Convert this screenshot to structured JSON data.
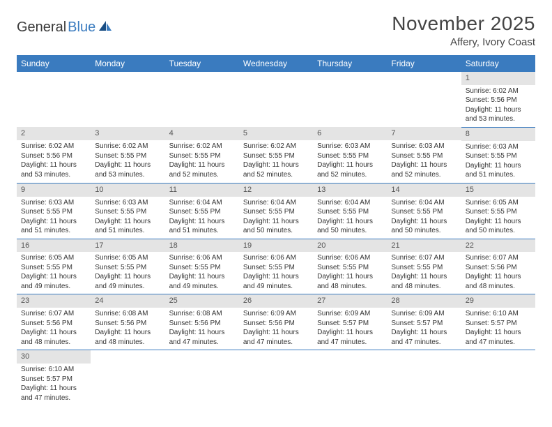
{
  "logo": {
    "part1": "General",
    "part2": "Blue"
  },
  "title": "November 2025",
  "location": "Affery, Ivory Coast",
  "colors": {
    "header_bg": "#3a7bbf",
    "header_text": "#ffffff",
    "day_strip_bg": "#e4e4e4",
    "row_border": "#3a7bbf",
    "text": "#333333",
    "logo_blue": "#3a7bbf",
    "logo_dark": "#3a3a3a"
  },
  "weekdays": [
    "Sunday",
    "Monday",
    "Tuesday",
    "Wednesday",
    "Thursday",
    "Friday",
    "Saturday"
  ],
  "weeks": [
    [
      null,
      null,
      null,
      null,
      null,
      null,
      {
        "n": "1",
        "sr": "Sunrise: 6:02 AM",
        "ss": "Sunset: 5:56 PM",
        "dl": "Daylight: 11 hours and 53 minutes."
      }
    ],
    [
      {
        "n": "2",
        "sr": "Sunrise: 6:02 AM",
        "ss": "Sunset: 5:56 PM",
        "dl": "Daylight: 11 hours and 53 minutes."
      },
      {
        "n": "3",
        "sr": "Sunrise: 6:02 AM",
        "ss": "Sunset: 5:55 PM",
        "dl": "Daylight: 11 hours and 53 minutes."
      },
      {
        "n": "4",
        "sr": "Sunrise: 6:02 AM",
        "ss": "Sunset: 5:55 PM",
        "dl": "Daylight: 11 hours and 52 minutes."
      },
      {
        "n": "5",
        "sr": "Sunrise: 6:02 AM",
        "ss": "Sunset: 5:55 PM",
        "dl": "Daylight: 11 hours and 52 minutes."
      },
      {
        "n": "6",
        "sr": "Sunrise: 6:03 AM",
        "ss": "Sunset: 5:55 PM",
        "dl": "Daylight: 11 hours and 52 minutes."
      },
      {
        "n": "7",
        "sr": "Sunrise: 6:03 AM",
        "ss": "Sunset: 5:55 PM",
        "dl": "Daylight: 11 hours and 52 minutes."
      },
      {
        "n": "8",
        "sr": "Sunrise: 6:03 AM",
        "ss": "Sunset: 5:55 PM",
        "dl": "Daylight: 11 hours and 51 minutes."
      }
    ],
    [
      {
        "n": "9",
        "sr": "Sunrise: 6:03 AM",
        "ss": "Sunset: 5:55 PM",
        "dl": "Daylight: 11 hours and 51 minutes."
      },
      {
        "n": "10",
        "sr": "Sunrise: 6:03 AM",
        "ss": "Sunset: 5:55 PM",
        "dl": "Daylight: 11 hours and 51 minutes."
      },
      {
        "n": "11",
        "sr": "Sunrise: 6:04 AM",
        "ss": "Sunset: 5:55 PM",
        "dl": "Daylight: 11 hours and 51 minutes."
      },
      {
        "n": "12",
        "sr": "Sunrise: 6:04 AM",
        "ss": "Sunset: 5:55 PM",
        "dl": "Daylight: 11 hours and 50 minutes."
      },
      {
        "n": "13",
        "sr": "Sunrise: 6:04 AM",
        "ss": "Sunset: 5:55 PM",
        "dl": "Daylight: 11 hours and 50 minutes."
      },
      {
        "n": "14",
        "sr": "Sunrise: 6:04 AM",
        "ss": "Sunset: 5:55 PM",
        "dl": "Daylight: 11 hours and 50 minutes."
      },
      {
        "n": "15",
        "sr": "Sunrise: 6:05 AM",
        "ss": "Sunset: 5:55 PM",
        "dl": "Daylight: 11 hours and 50 minutes."
      }
    ],
    [
      {
        "n": "16",
        "sr": "Sunrise: 6:05 AM",
        "ss": "Sunset: 5:55 PM",
        "dl": "Daylight: 11 hours and 49 minutes."
      },
      {
        "n": "17",
        "sr": "Sunrise: 6:05 AM",
        "ss": "Sunset: 5:55 PM",
        "dl": "Daylight: 11 hours and 49 minutes."
      },
      {
        "n": "18",
        "sr": "Sunrise: 6:06 AM",
        "ss": "Sunset: 5:55 PM",
        "dl": "Daylight: 11 hours and 49 minutes."
      },
      {
        "n": "19",
        "sr": "Sunrise: 6:06 AM",
        "ss": "Sunset: 5:55 PM",
        "dl": "Daylight: 11 hours and 49 minutes."
      },
      {
        "n": "20",
        "sr": "Sunrise: 6:06 AM",
        "ss": "Sunset: 5:55 PM",
        "dl": "Daylight: 11 hours and 48 minutes."
      },
      {
        "n": "21",
        "sr": "Sunrise: 6:07 AM",
        "ss": "Sunset: 5:55 PM",
        "dl": "Daylight: 11 hours and 48 minutes."
      },
      {
        "n": "22",
        "sr": "Sunrise: 6:07 AM",
        "ss": "Sunset: 5:56 PM",
        "dl": "Daylight: 11 hours and 48 minutes."
      }
    ],
    [
      {
        "n": "23",
        "sr": "Sunrise: 6:07 AM",
        "ss": "Sunset: 5:56 PM",
        "dl": "Daylight: 11 hours and 48 minutes."
      },
      {
        "n": "24",
        "sr": "Sunrise: 6:08 AM",
        "ss": "Sunset: 5:56 PM",
        "dl": "Daylight: 11 hours and 48 minutes."
      },
      {
        "n": "25",
        "sr": "Sunrise: 6:08 AM",
        "ss": "Sunset: 5:56 PM",
        "dl": "Daylight: 11 hours and 47 minutes."
      },
      {
        "n": "26",
        "sr": "Sunrise: 6:09 AM",
        "ss": "Sunset: 5:56 PM",
        "dl": "Daylight: 11 hours and 47 minutes."
      },
      {
        "n": "27",
        "sr": "Sunrise: 6:09 AM",
        "ss": "Sunset: 5:57 PM",
        "dl": "Daylight: 11 hours and 47 minutes."
      },
      {
        "n": "28",
        "sr": "Sunrise: 6:09 AM",
        "ss": "Sunset: 5:57 PM",
        "dl": "Daylight: 11 hours and 47 minutes."
      },
      {
        "n": "29",
        "sr": "Sunrise: 6:10 AM",
        "ss": "Sunset: 5:57 PM",
        "dl": "Daylight: 11 hours and 47 minutes."
      }
    ],
    [
      {
        "n": "30",
        "sr": "Sunrise: 6:10 AM",
        "ss": "Sunset: 5:57 PM",
        "dl": "Daylight: 11 hours and 47 minutes."
      },
      null,
      null,
      null,
      null,
      null,
      null
    ]
  ]
}
